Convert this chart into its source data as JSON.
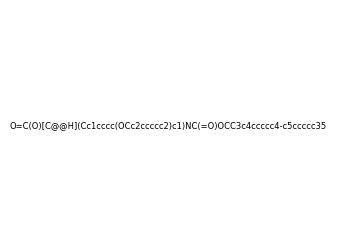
{
  "smiles": "O=C(O)[C@@H](Cc1cccc(OCc2ccccc2)c1)NC(=O)OCC3c4ccccc4-c5ccccc35",
  "image_size": 300,
  "background_color": "#e8e8e8"
}
